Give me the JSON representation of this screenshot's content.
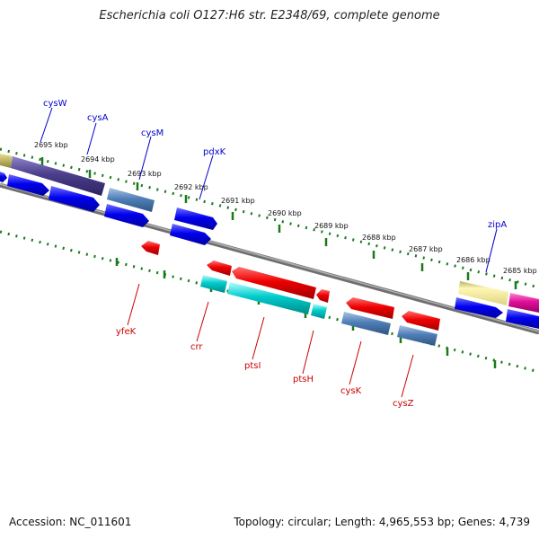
{
  "title": "Escherichia coli O127:H6 str. E2348/69, complete genome",
  "footer": {
    "accession": "Accession: NC_011601",
    "summary": "Topology: circular; Length: 4,965,553 bp; Genes: 4,739"
  },
  "scale_labels": [
    "2695 kbp",
    "2694 kbp",
    "2693 kbp",
    "2692 kbp",
    "2691 kbp",
    "2690 kbp",
    "2689 kbp",
    "2688 kbp",
    "2687 kbp",
    "2686 kbp",
    "2685 kbp"
  ],
  "genes_forward": [
    {
      "name": "cysW",
      "color": "#0000cc"
    },
    {
      "name": "cysA",
      "color": "#0000cc"
    },
    {
      "name": "cysM",
      "color": "#0000cc"
    },
    {
      "name": "pdxK",
      "color": "#0000cc"
    },
    {
      "name": "zipA",
      "color": "#0000cc"
    }
  ],
  "genes_reverse": [
    {
      "name": "yfeK",
      "color": "#cc0000"
    },
    {
      "name": "crr",
      "color": "#cc0000"
    },
    {
      "name": "ptsI",
      "color": "#cc0000"
    },
    {
      "name": "ptsH",
      "color": "#cc0000"
    },
    {
      "name": "cysK",
      "color": "#cc0000"
    },
    {
      "name": "cysZ",
      "color": "#cc0000"
    }
  ],
  "colors": {
    "backbone": "#8a8a8a",
    "tick": "#1a7a1a",
    "cds_forward": "#0000ee",
    "cds_reverse": "#ee0000",
    "feature_steelblue": "#4f7fb8",
    "feature_cyan": "#00cccc",
    "feature_khaki": "#e8e08a",
    "feature_purple": "#4b3f8c",
    "feature_magenta": "#e0109a",
    "feature_olive": "#c8c070"
  }
}
